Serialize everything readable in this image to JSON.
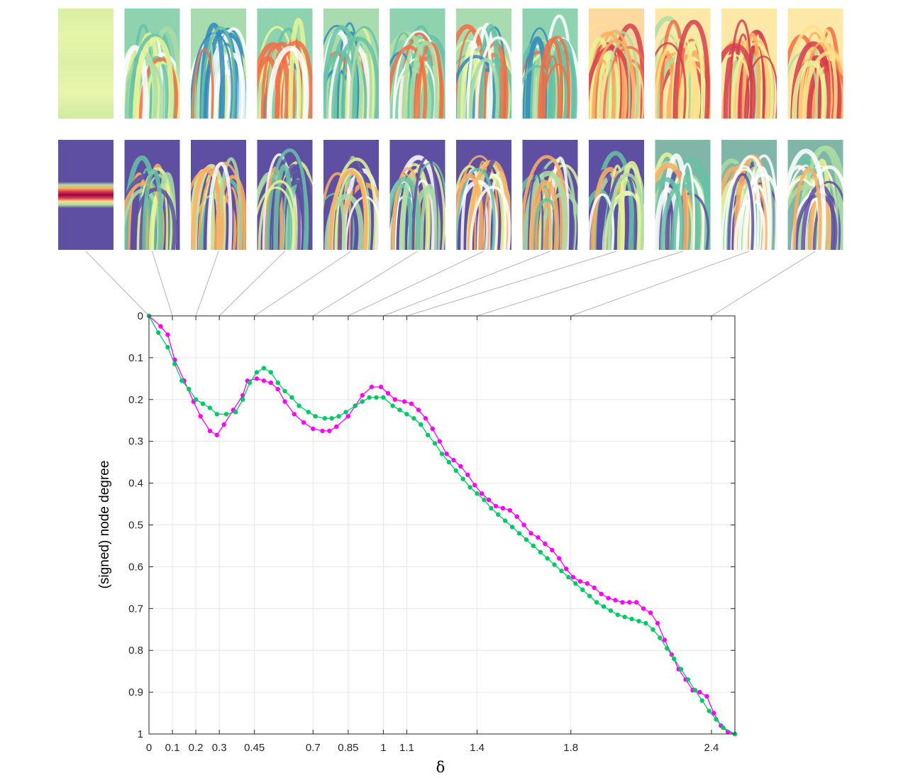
{
  "chart_data": {
    "type": "line",
    "title": "",
    "xlabel": "δ",
    "ylabel": "(signed) node degree",
    "xlim": [
      0,
      2.5
    ],
    "ylim": [
      0,
      1
    ],
    "y_reversed": true,
    "grid": true,
    "xticks": [
      0,
      0.1,
      0.2,
      0.3,
      0.45,
      0.7,
      0.85,
      1,
      1.1,
      1.4,
      1.8,
      2.4
    ],
    "xtick_labels": [
      "0",
      "0.1",
      "0.2",
      "0.3",
      "0.45",
      "0.7",
      "0.85",
      "1",
      "1.1",
      "1.4",
      "1.8",
      "2.4"
    ],
    "yticks": [
      0,
      0.1,
      0.2,
      0.3,
      0.4,
      0.5,
      0.6,
      0.7,
      0.8,
      0.9,
      1
    ],
    "ytick_labels": [
      "0",
      "0.1",
      "0.2",
      "0.3",
      "0.4",
      "0.5",
      "0.6",
      "0.7",
      "0.8",
      "0.9",
      "1"
    ],
    "series": [
      {
        "name": "magenta",
        "color": "#ff00ff",
        "points": [
          [
            0,
            0
          ],
          [
            0.05,
            0.025
          ],
          [
            0.08,
            0.045
          ],
          [
            0.11,
            0.105
          ],
          [
            0.15,
            0.155
          ],
          [
            0.19,
            0.205
          ],
          [
            0.22,
            0.24
          ],
          [
            0.26,
            0.275
          ],
          [
            0.29,
            0.285
          ],
          [
            0.32,
            0.26
          ],
          [
            0.36,
            0.225
          ],
          [
            0.4,
            0.19
          ],
          [
            0.42,
            0.155
          ],
          [
            0.46,
            0.15
          ],
          [
            0.49,
            0.155
          ],
          [
            0.52,
            0.16
          ],
          [
            0.55,
            0.175
          ],
          [
            0.58,
            0.205
          ],
          [
            0.62,
            0.235
          ],
          [
            0.66,
            0.255
          ],
          [
            0.7,
            0.27
          ],
          [
            0.74,
            0.275
          ],
          [
            0.77,
            0.275
          ],
          [
            0.8,
            0.265
          ],
          [
            0.85,
            0.24
          ],
          [
            0.88,
            0.215
          ],
          [
            0.91,
            0.19
          ],
          [
            0.95,
            0.17
          ],
          [
            0.99,
            0.17
          ],
          [
            1.02,
            0.185
          ],
          [
            1.05,
            0.2
          ],
          [
            1.09,
            0.205
          ],
          [
            1.12,
            0.21
          ],
          [
            1.15,
            0.225
          ],
          [
            1.18,
            0.245
          ],
          [
            1.21,
            0.27
          ],
          [
            1.24,
            0.3
          ],
          [
            1.27,
            0.33
          ],
          [
            1.3,
            0.345
          ],
          [
            1.33,
            0.36
          ],
          [
            1.36,
            0.38
          ],
          [
            1.39,
            0.405
          ],
          [
            1.42,
            0.425
          ],
          [
            1.45,
            0.44
          ],
          [
            1.48,
            0.455
          ],
          [
            1.51,
            0.46
          ],
          [
            1.54,
            0.465
          ],
          [
            1.57,
            0.48
          ],
          [
            1.6,
            0.5
          ],
          [
            1.63,
            0.52
          ],
          [
            1.66,
            0.53
          ],
          [
            1.69,
            0.545
          ],
          [
            1.72,
            0.56
          ],
          [
            1.75,
            0.58
          ],
          [
            1.78,
            0.605
          ],
          [
            1.81,
            0.625
          ],
          [
            1.84,
            0.635
          ],
          [
            1.87,
            0.64
          ],
          [
            1.9,
            0.65
          ],
          [
            1.93,
            0.665
          ],
          [
            1.96,
            0.675
          ],
          [
            1.99,
            0.68
          ],
          [
            2.02,
            0.685
          ],
          [
            2.05,
            0.685
          ],
          [
            2.08,
            0.685
          ],
          [
            2.11,
            0.7
          ],
          [
            2.14,
            0.71
          ],
          [
            2.17,
            0.735
          ],
          [
            2.2,
            0.775
          ],
          [
            2.23,
            0.81
          ],
          [
            2.26,
            0.845
          ],
          [
            2.29,
            0.87
          ],
          [
            2.32,
            0.895
          ],
          [
            2.35,
            0.9
          ],
          [
            2.38,
            0.91
          ],
          [
            2.41,
            0.95
          ],
          [
            2.44,
            0.98
          ],
          [
            2.47,
            0.995
          ],
          [
            2.5,
            1.0
          ]
        ]
      },
      {
        "name": "green",
        "color": "#00c864",
        "points": [
          [
            0,
            0
          ],
          [
            0.04,
            0.04
          ],
          [
            0.08,
            0.075
          ],
          [
            0.11,
            0.115
          ],
          [
            0.14,
            0.155
          ],
          [
            0.17,
            0.175
          ],
          [
            0.2,
            0.2
          ],
          [
            0.23,
            0.21
          ],
          [
            0.26,
            0.22
          ],
          [
            0.29,
            0.235
          ],
          [
            0.33,
            0.235
          ],
          [
            0.37,
            0.23
          ],
          [
            0.4,
            0.2
          ],
          [
            0.43,
            0.16
          ],
          [
            0.46,
            0.135
          ],
          [
            0.49,
            0.125
          ],
          [
            0.52,
            0.135
          ],
          [
            0.55,
            0.16
          ],
          [
            0.58,
            0.18
          ],
          [
            0.61,
            0.195
          ],
          [
            0.64,
            0.215
          ],
          [
            0.68,
            0.23
          ],
          [
            0.71,
            0.24
          ],
          [
            0.75,
            0.245
          ],
          [
            0.78,
            0.245
          ],
          [
            0.81,
            0.24
          ],
          [
            0.84,
            0.23
          ],
          [
            0.88,
            0.215
          ],
          [
            0.91,
            0.205
          ],
          [
            0.94,
            0.195
          ],
          [
            0.97,
            0.195
          ],
          [
            1.0,
            0.195
          ],
          [
            1.04,
            0.215
          ],
          [
            1.07,
            0.225
          ],
          [
            1.1,
            0.235
          ],
          [
            1.13,
            0.245
          ],
          [
            1.16,
            0.26
          ],
          [
            1.19,
            0.285
          ],
          [
            1.22,
            0.305
          ],
          [
            1.25,
            0.33
          ],
          [
            1.28,
            0.35
          ],
          [
            1.31,
            0.37
          ],
          [
            1.34,
            0.39
          ],
          [
            1.37,
            0.41
          ],
          [
            1.4,
            0.425
          ],
          [
            1.43,
            0.44
          ],
          [
            1.46,
            0.46
          ],
          [
            1.49,
            0.475
          ],
          [
            1.52,
            0.49
          ],
          [
            1.55,
            0.505
          ],
          [
            1.58,
            0.52
          ],
          [
            1.61,
            0.535
          ],
          [
            1.64,
            0.55
          ],
          [
            1.67,
            0.565
          ],
          [
            1.7,
            0.58
          ],
          [
            1.73,
            0.595
          ],
          [
            1.76,
            0.61
          ],
          [
            1.79,
            0.625
          ],
          [
            1.82,
            0.64
          ],
          [
            1.85,
            0.655
          ],
          [
            1.88,
            0.67
          ],
          [
            1.91,
            0.685
          ],
          [
            1.94,
            0.695
          ],
          [
            1.97,
            0.705
          ],
          [
            2.0,
            0.715
          ],
          [
            2.03,
            0.72
          ],
          [
            2.06,
            0.725
          ],
          [
            2.09,
            0.73
          ],
          [
            2.12,
            0.735
          ],
          [
            2.15,
            0.75
          ],
          [
            2.18,
            0.77
          ],
          [
            2.21,
            0.795
          ],
          [
            2.24,
            0.82
          ],
          [
            2.27,
            0.845
          ],
          [
            2.3,
            0.87
          ],
          [
            2.33,
            0.895
          ],
          [
            2.36,
            0.92
          ],
          [
            2.39,
            0.945
          ],
          [
            2.42,
            0.965
          ],
          [
            2.45,
            0.985
          ],
          [
            2.5,
            1.0
          ]
        ]
      }
    ]
  },
  "thumbnails": {
    "deltas": [
      0,
      0.1,
      0.2,
      0.3,
      0.45,
      0.7,
      0.85,
      1,
      1.1,
      1.4,
      1.8,
      2.4
    ],
    "colors": [
      "#5e4fa2",
      "#3288bd",
      "#66c2a5",
      "#abdda4",
      "#e6f598",
      "#fee08b",
      "#fdae61",
      "#f46d43",
      "#d53e4f",
      "#9e0142"
    ]
  }
}
